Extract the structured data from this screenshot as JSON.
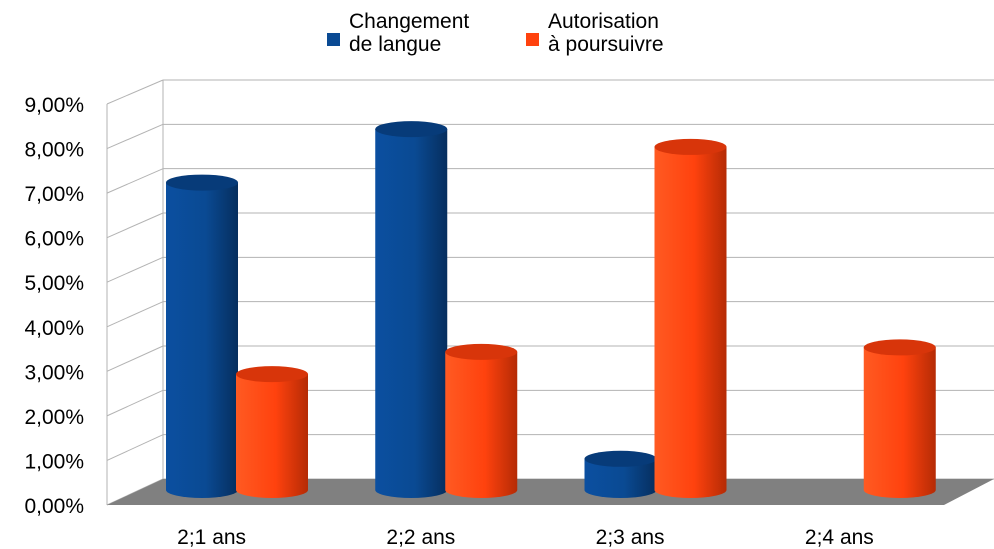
{
  "chart_data": {
    "type": "bar",
    "categories": [
      "2;1 ans",
      "2;2 ans",
      "2;3 ans",
      "2;4 ans"
    ],
    "series": [
      {
        "name": "Changement\nde langue",
        "values": [
          6.9,
          8.1,
          0.7,
          0.0
        ],
        "color": "#0a4a93"
      },
      {
        "name": "Autorisation\nà poursuivre",
        "values": [
          2.6,
          3.1,
          7.7,
          3.2
        ],
        "color": "#ff420e"
      }
    ],
    "ylim": [
      0,
      9
    ],
    "yticks": [
      "0,00%",
      "1,00%",
      "2,00%",
      "3,00%",
      "4,00%",
      "5,00%",
      "6,00%",
      "7,00%",
      "8,00%",
      "9,00%"
    ],
    "grid": true,
    "legend_position": "top",
    "style": "3d-cylinder",
    "floor_color": "#808080"
  }
}
